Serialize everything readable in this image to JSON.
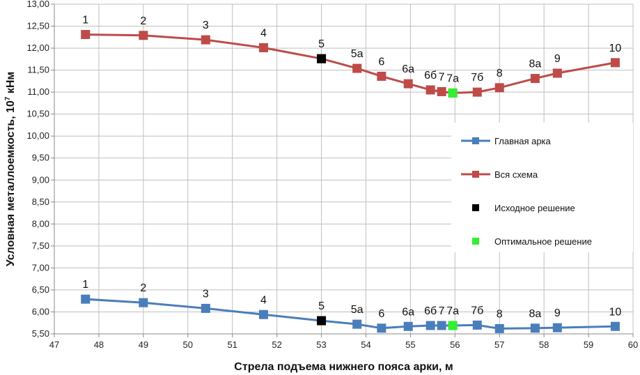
{
  "chart_data": {
    "type": "line",
    "xlabel": "Стрела подъема нижнего пояса арки, м",
    "ylabel_main": "Условная металлоемкость, 10",
    "ylabel_sup": "7",
    "ylabel_unit": " кНм",
    "xlim": [
      47,
      60
    ],
    "ylim": [
      5.5,
      13.0
    ],
    "x_ticks": [
      "47",
      "48",
      "49",
      "50",
      "51",
      "52",
      "53",
      "54",
      "55",
      "56",
      "57",
      "58",
      "59",
      "60"
    ],
    "y_ticks": [
      "5,50",
      "6,00",
      "6,50",
      "7,00",
      "7,50",
      "8,00",
      "8,50",
      "9,00",
      "9,50",
      "10,00",
      "10,50",
      "11,00",
      "11,50",
      "12,00",
      "12,50",
      "13,00"
    ],
    "grid": true,
    "legend_position": "right",
    "series": [
      {
        "name": "Главная арка",
        "color": "#4a7ebb",
        "marker": "square",
        "line": true,
        "points": [
          {
            "x": 47.7,
            "y": 6.29,
            "label": "1"
          },
          {
            "x": 49.0,
            "y": 6.21,
            "label": "2"
          },
          {
            "x": 50.4,
            "y": 6.08,
            "label": "3"
          },
          {
            "x": 51.7,
            "y": 5.94,
            "label": "4"
          },
          {
            "x": 53.0,
            "y": 5.8,
            "label": "5"
          },
          {
            "x": 53.8,
            "y": 5.72,
            "label": "5а"
          },
          {
            "x": 54.35,
            "y": 5.63,
            "label": "6"
          },
          {
            "x": 54.95,
            "y": 5.67,
            "label": "6а"
          },
          {
            "x": 55.45,
            "y": 5.69,
            "label": "6б"
          },
          {
            "x": 55.7,
            "y": 5.69,
            "label": "7"
          },
          {
            "x": 55.95,
            "y": 5.69,
            "label": "7а"
          },
          {
            "x": 56.5,
            "y": 5.7,
            "label": "7б"
          },
          {
            "x": 57.0,
            "y": 5.62,
            "label": "8"
          },
          {
            "x": 57.8,
            "y": 5.63,
            "label": "8а"
          },
          {
            "x": 58.3,
            "y": 5.64,
            "label": "9"
          },
          {
            "x": 59.6,
            "y": 5.67,
            "label": "10"
          }
        ]
      },
      {
        "name": "Вся схема",
        "color": "#be4b48",
        "marker": "square",
        "line": true,
        "points": [
          {
            "x": 47.7,
            "y": 12.31,
            "label": "1"
          },
          {
            "x": 49.0,
            "y": 12.29,
            "label": "2"
          },
          {
            "x": 50.4,
            "y": 12.19,
            "label": "3"
          },
          {
            "x": 51.7,
            "y": 12.01,
            "label": "4"
          },
          {
            "x": 53.0,
            "y": 11.76,
            "label": "5"
          },
          {
            "x": 53.8,
            "y": 11.54,
            "label": "5а"
          },
          {
            "x": 54.35,
            "y": 11.36,
            "label": "6"
          },
          {
            "x": 54.95,
            "y": 11.19,
            "label": "6а"
          },
          {
            "x": 55.45,
            "y": 11.05,
            "label": "6б"
          },
          {
            "x": 55.7,
            "y": 11.01,
            "label": "7"
          },
          {
            "x": 55.95,
            "y": 10.98,
            "label": "7а"
          },
          {
            "x": 56.5,
            "y": 11.0,
            "label": "7б"
          },
          {
            "x": 57.0,
            "y": 11.1,
            "label": "8"
          },
          {
            "x": 57.8,
            "y": 11.31,
            "label": "8а"
          },
          {
            "x": 58.3,
            "y": 11.43,
            "label": "9"
          },
          {
            "x": 59.6,
            "y": 11.67,
            "label": "10"
          }
        ]
      },
      {
        "name": "Исходное решение",
        "color": "#000000",
        "marker": "square",
        "line": false,
        "points": [
          {
            "x": 53.0,
            "y": 11.76
          },
          {
            "x": 53.0,
            "y": 5.8
          }
        ]
      },
      {
        "name": "Оптимальное решение",
        "color": "#33ee33",
        "marker": "square",
        "line": false,
        "points": [
          {
            "x": 55.95,
            "y": 10.98
          },
          {
            "x": 55.95,
            "y": 5.69
          }
        ]
      }
    ]
  }
}
